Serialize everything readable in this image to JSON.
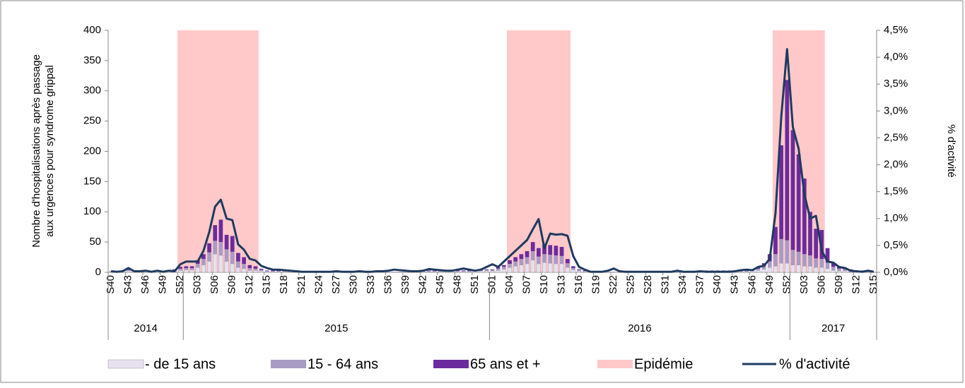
{
  "chart_data": {
    "type": "bar",
    "y_label": "Nombre d'hospitalisations après passage aux urgences pour syndrome grippal",
    "y2_label": "% d'activité",
    "categories": [
      "S40",
      null,
      null,
      "S43",
      null,
      null,
      "S46",
      null,
      null,
      "S49",
      null,
      null,
      "S52",
      null,
      null,
      "S03",
      null,
      null,
      "S06",
      null,
      null,
      "S09",
      null,
      null,
      "S12",
      null,
      null,
      "S15",
      null,
      null,
      "S18",
      null,
      null,
      "S21",
      null,
      null,
      "S24",
      null,
      null,
      "S27",
      null,
      null,
      "S30",
      null,
      null,
      "S33",
      null,
      null,
      "S36",
      null,
      null,
      "S39",
      null,
      null,
      "S42",
      null,
      null,
      "S45",
      null,
      null,
      "S48",
      null,
      null,
      "S51",
      null,
      null,
      "S01",
      null,
      null,
      "S04",
      null,
      null,
      "S07",
      null,
      null,
      "S10",
      null,
      null,
      "S13",
      null,
      null,
      "S16",
      null,
      null,
      "S19",
      null,
      null,
      "S22",
      null,
      null,
      "S25",
      null,
      null,
      "S28",
      null,
      null,
      "S31",
      null,
      null,
      "S34",
      null,
      null,
      "S37",
      null,
      null,
      "S40",
      null,
      null,
      "S43",
      null,
      null,
      "S46",
      null,
      null,
      "S49",
      null,
      null,
      "S52",
      null,
      null,
      "S03",
      null,
      null,
      "S06",
      null,
      null,
      "S09",
      null,
      null,
      "S12",
      null,
      null,
      "S15"
    ],
    "groups": [
      {
        "label": "2014",
        "weeks": 13
      },
      {
        "label": "2015",
        "weeks": 53
      },
      {
        "label": "2016",
        "weeks": 52
      },
      {
        "label": "2017",
        "weeks": 15
      }
    ],
    "ylim": [
      0,
      400
    ],
    "yticks": [
      0,
      50,
      100,
      150,
      200,
      250,
      300,
      350,
      400
    ],
    "y2lim": [
      0,
      4.5
    ],
    "y2ticks": [
      {
        "value": 0,
        "label": "0,0%"
      },
      {
        "value": 0.5,
        "label": "0,5%"
      },
      {
        "value": 1,
        "label": "1,0%"
      },
      {
        "value": 1.5,
        "label": "1,5%"
      },
      {
        "value": 2,
        "label": "2,0%"
      },
      {
        "value": 2.5,
        "label": "2,5%"
      },
      {
        "value": 3,
        "label": "3,0%"
      },
      {
        "value": 3.5,
        "label": "3,5%"
      },
      {
        "value": 4,
        "label": "4,0%"
      },
      {
        "value": 4.5,
        "label": "4,5%"
      }
    ],
    "stacked": true,
    "series": [
      {
        "name": "- de 15 ans",
        "type": "bar",
        "color": "#e6e0ef",
        "values": [
          1,
          1,
          1,
          2,
          1,
          1,
          1,
          1,
          1,
          1,
          1,
          1,
          3,
          4,
          4,
          8,
          12,
          18,
          30,
          28,
          18,
          14,
          8,
          6,
          3,
          3,
          2,
          1,
          1,
          1,
          1,
          1,
          1,
          1,
          0,
          0,
          0,
          0,
          0,
          0,
          0,
          0,
          0,
          0,
          0,
          0,
          0,
          0,
          0,
          0,
          0,
          0,
          0,
          1,
          1,
          1,
          1,
          1,
          1,
          1,
          1,
          1,
          1,
          2,
          2,
          2,
          2,
          3,
          5,
          8,
          10,
          12,
          14,
          20,
          14,
          16,
          15,
          14,
          14,
          8,
          4,
          2,
          1,
          1,
          1,
          0,
          0,
          0,
          0,
          0,
          0,
          0,
          0,
          0,
          0,
          0,
          0,
          0,
          0,
          0,
          0,
          0,
          1,
          1,
          1,
          1,
          1,
          1,
          1,
          1,
          1,
          2,
          3,
          5,
          8,
          10,
          15,
          15,
          12,
          12,
          10,
          10,
          8,
          8,
          6,
          3,
          2,
          2,
          1,
          1,
          1,
          0,
          0
        ]
      },
      {
        "name": "15 - 64 ans",
        "type": "bar",
        "color": "#a89bc4",
        "values": [
          1,
          1,
          1,
          2,
          1,
          1,
          1,
          1,
          1,
          1,
          1,
          2,
          3,
          3,
          3,
          6,
          10,
          15,
          22,
          22,
          20,
          20,
          10,
          8,
          4,
          3,
          2,
          1,
          1,
          1,
          1,
          1,
          1,
          1,
          1,
          1,
          1,
          1,
          1,
          1,
          1,
          1,
          1,
          1,
          1,
          1,
          1,
          1,
          1,
          1,
          1,
          1,
          1,
          1,
          1,
          1,
          1,
          1,
          1,
          1,
          1,
          1,
          1,
          1,
          2,
          2,
          2,
          3,
          4,
          6,
          8,
          10,
          11,
          15,
          12,
          14,
          14,
          14,
          13,
          7,
          3,
          2,
          1,
          1,
          1,
          1,
          1,
          1,
          1,
          1,
          1,
          1,
          1,
          1,
          1,
          1,
          1,
          1,
          1,
          1,
          1,
          1,
          1,
          1,
          1,
          1,
          1,
          1,
          1,
          1,
          1,
          2,
          3,
          5,
          10,
          20,
          40,
          38,
          25,
          22,
          20,
          18,
          15,
          14,
          10,
          6,
          4,
          3,
          2,
          1,
          1,
          1,
          0
        ]
      },
      {
        "name": "65 ans et +",
        "type": "bar",
        "color": "#6a2c9c",
        "values": [
          0,
          0,
          1,
          2,
          1,
          0,
          1,
          0,
          1,
          0,
          1,
          2,
          3,
          3,
          3,
          6,
          8,
          15,
          26,
          37,
          24,
          26,
          14,
          11,
          5,
          4,
          2,
          1,
          1,
          1,
          1,
          0,
          1,
          0,
          0,
          0,
          0,
          0,
          0,
          0,
          0,
          0,
          0,
          0,
          0,
          0,
          0,
          0,
          0,
          0,
          0,
          0,
          0,
          1,
          1,
          1,
          1,
          1,
          1,
          1,
          1,
          1,
          1,
          1,
          1,
          1,
          1,
          2,
          3,
          6,
          7,
          8,
          10,
          15,
          14,
          16,
          16,
          16,
          15,
          7,
          3,
          1,
          1,
          0,
          0,
          0,
          0,
          0,
          0,
          0,
          0,
          0,
          0,
          0,
          0,
          0,
          0,
          0,
          0,
          0,
          1,
          1,
          1,
          1,
          1,
          1,
          1,
          1,
          1,
          1,
          1,
          1,
          2,
          5,
          12,
          45,
          155,
          265,
          198,
          161,
          125,
          72,
          49,
          48,
          24,
          6,
          4,
          3,
          2,
          1,
          1,
          0,
          0
        ]
      },
      {
        "name": "Epidémie",
        "type": "band",
        "color": "#ffc9c9",
        "values": [
          0,
          0,
          0,
          0,
          0,
          0,
          0,
          0,
          0,
          0,
          0,
          0,
          400,
          400,
          400,
          400,
          400,
          400,
          400,
          400,
          400,
          400,
          400,
          400,
          400,
          400,
          0,
          0,
          0,
          0,
          0,
          0,
          0,
          0,
          0,
          0,
          0,
          0,
          0,
          0,
          0,
          0,
          0,
          0,
          0,
          0,
          0,
          0,
          0,
          0,
          0,
          0,
          0,
          0,
          0,
          0,
          0,
          0,
          0,
          0,
          0,
          0,
          0,
          0,
          0,
          0,
          0,
          0,
          0,
          400,
          400,
          400,
          400,
          400,
          400,
          400,
          400,
          400,
          400,
          400,
          0,
          0,
          0,
          0,
          0,
          0,
          0,
          0,
          0,
          0,
          0,
          0,
          0,
          0,
          0,
          0,
          0,
          0,
          0,
          0,
          0,
          0,
          0,
          0,
          0,
          0,
          0,
          0,
          0,
          0,
          0,
          0,
          0,
          0,
          0,
          400,
          400,
          400,
          400,
          400,
          400,
          400,
          400,
          400,
          0,
          0,
          0,
          0,
          0,
          0,
          0,
          0,
          0
        ]
      },
      {
        "name": "% d'activité",
        "type": "line",
        "axis": "y2",
        "color": "#1f3a5f",
        "values": [
          0.02,
          0.01,
          0.02,
          0.08,
          0.02,
          0.02,
          0.03,
          0.01,
          0.03,
          0.01,
          0.03,
          0.02,
          0.15,
          0.2,
          0.2,
          0.2,
          0.4,
          0.75,
          1.22,
          1.35,
          1.0,
          0.97,
          0.52,
          0.42,
          0.25,
          0.22,
          0.12,
          0.08,
          0.05,
          0.05,
          0.04,
          0.03,
          0.02,
          0.01,
          0.01,
          0.01,
          0.01,
          0.01,
          0.01,
          0.02,
          0.01,
          0.01,
          0.01,
          0.02,
          0.01,
          0.01,
          0.02,
          0.02,
          0.03,
          0.05,
          0.04,
          0.03,
          0.02,
          0.02,
          0.03,
          0.06,
          0.05,
          0.04,
          0.03,
          0.03,
          0.05,
          0.07,
          0.05,
          0.03,
          0.05,
          0.1,
          0.15,
          0.1,
          0.2,
          0.3,
          0.4,
          0.5,
          0.6,
          0.8,
          0.99,
          0.45,
          0.72,
          0.7,
          0.71,
          0.68,
          0.3,
          0.1,
          0.05,
          0.01,
          0.01,
          0.01,
          0.03,
          0.07,
          0.02,
          0.01,
          0.01,
          0.01,
          0.01,
          0.01,
          0.01,
          0.01,
          0.01,
          0.01,
          0.03,
          0.01,
          0.01,
          0.01,
          0.02,
          0.01,
          0.01,
          0.01,
          0.01,
          0.01,
          0.02,
          0.04,
          0.05,
          0.04,
          0.1,
          0.12,
          0.25,
          1.1,
          2.9,
          4.15,
          2.7,
          2.3,
          1.45,
          1.0,
          1.05,
          0.4,
          0.2,
          0.18,
          0.1,
          0.08,
          0.03,
          0.02,
          0.01,
          0.03,
          0.01
        ]
      }
    ]
  }
}
